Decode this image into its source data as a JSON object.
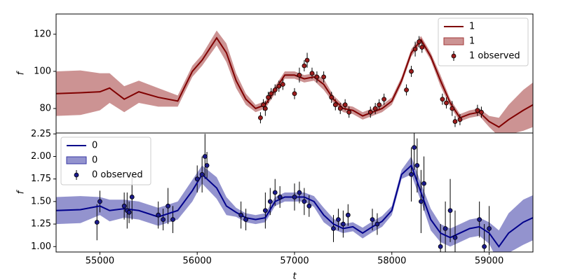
{
  "chart_data": [
    {
      "type": "line",
      "ylabel": "f",
      "legend": "upper right",
      "xlim": [
        54550,
        59450
      ],
      "ylim": [
        66.8,
        130.9
      ],
      "yticks": [
        80,
        100,
        120
      ],
      "x": [
        54550,
        54800,
        55000,
        55100,
        55250,
        55400,
        55600,
        55800,
        55950,
        56050,
        56200,
        56300,
        56400,
        56500,
        56600,
        56700,
        56800,
        56900,
        57000,
        57100,
        57200,
        57300,
        57400,
        57500,
        57600,
        57700,
        57800,
        57900,
        58000,
        58100,
        58200,
        58300,
        58400,
        58500,
        58600,
        58700,
        58800,
        58900,
        59000,
        59100,
        59200,
        59350,
        59450
      ],
      "series": [
        {
          "name": "1",
          "color": "#800000",
          "values": [
            88,
            88.5,
            89,
            91,
            85,
            89,
            86,
            84,
            100,
            106,
            118,
            110,
            95,
            85,
            80,
            82,
            90,
            98,
            98,
            96,
            97,
            93,
            85,
            80,
            79,
            76,
            78,
            80,
            84,
            95,
            110,
            117,
            108,
            95,
            83,
            75,
            77,
            78,
            73,
            70,
            74,
            79,
            82
          ]
        }
      ],
      "band": {
        "name": "1",
        "color": "#a33a3a",
        "lower": [
          76,
          76.5,
          79,
          83,
          78,
          83,
          81,
          81,
          97,
          103,
          114,
          105,
          91,
          82,
          78,
          80,
          88,
          96,
          96,
          94,
          95,
          90,
          83,
          78,
          77,
          74,
          76,
          78,
          82,
          93,
          108,
          115,
          106,
          92,
          81,
          73,
          75,
          76,
          70,
          65,
          66,
          68,
          70
        ],
        "upper": [
          100,
          100.5,
          99,
          99,
          92,
          95,
          91,
          87,
          103,
          109,
          122,
          115,
          99,
          88,
          82,
          84,
          92,
          100,
          100,
          98,
          99,
          96,
          87,
          82,
          81,
          78,
          80,
          82,
          86,
          97,
          112,
          119,
          110,
          98,
          85,
          77,
          79,
          80,
          76,
          75,
          82,
          90,
          94
        ]
      },
      "observed": {
        "name": "1 observed",
        "color": "#9b1c1c",
        "x": [
          56650,
          56680,
          56700,
          56730,
          56760,
          56800,
          56840,
          56880,
          57000,
          57050,
          57100,
          57130,
          57180,
          57230,
          57300,
          57380,
          57420,
          57470,
          57520,
          57560,
          57780,
          57830,
          57870,
          57920,
          58150,
          58200,
          58240,
          58280,
          58310,
          58520,
          58560,
          58620,
          58650,
          58700,
          58880,
          58920
        ],
        "values": [
          75,
          82,
          80,
          86,
          88,
          90,
          92,
          93,
          88,
          98,
          103,
          106,
          99,
          97,
          97,
          86,
          82,
          80,
          82,
          78,
          78,
          80,
          82,
          85,
          90,
          100,
          112,
          116,
          113,
          85,
          83,
          80,
          73,
          74,
          79,
          78
        ],
        "errors": [
          3,
          3,
          4,
          3,
          3,
          3,
          3,
          3,
          3,
          4,
          3,
          4,
          3,
          3,
          3,
          3,
          3,
          3,
          3,
          3,
          3,
          3,
          3,
          3,
          3,
          3,
          4,
          3,
          3,
          3,
          3,
          4,
          3,
          3,
          3,
          3
        ]
      }
    },
    {
      "type": "line",
      "ylabel": "f",
      "xlabel": "t",
      "legend": "upper left",
      "xlim": [
        54550,
        59450
      ],
      "ylim": [
        0.94,
        2.26
      ],
      "yticks": [
        {
          "value": 1,
          "label": "1.00"
        },
        1.25,
        {
          "value": 1.5,
          "label": "1.50"
        },
        1.75,
        {
          "value": 2,
          "label": "2.00"
        },
        2.25
      ],
      "xticks": [
        55000,
        56000,
        57000,
        58000,
        59000
      ],
      "x": [
        54550,
        54800,
        55000,
        55100,
        55250,
        55400,
        55600,
        55800,
        55950,
        56050,
        56200,
        56300,
        56400,
        56500,
        56600,
        56700,
        56800,
        56900,
        57000,
        57100,
        57200,
        57300,
        57400,
        57500,
        57600,
        57700,
        57800,
        57900,
        58000,
        58100,
        58200,
        58300,
        58400,
        58500,
        58600,
        58700,
        58800,
        58900,
        59000,
        59100,
        59200,
        59350,
        59450
      ],
      "series": [
        {
          "name": "0",
          "color": "#00008b",
          "values": [
            1.4,
            1.41,
            1.45,
            1.4,
            1.42,
            1.4,
            1.33,
            1.4,
            1.62,
            1.8,
            1.65,
            1.45,
            1.38,
            1.32,
            1.3,
            1.32,
            1.5,
            1.55,
            1.55,
            1.55,
            1.5,
            1.35,
            1.25,
            1.2,
            1.22,
            1.15,
            1.22,
            1.28,
            1.4,
            1.8,
            1.9,
            1.6,
            1.3,
            1.15,
            1.1,
            1.15,
            1.2,
            1.22,
            1.15,
            1.0,
            1.15,
            1.27,
            1.32
          ]
        }
      ],
      "band": {
        "name": "0",
        "color": "#3a3aa5",
        "lower": [
          1.25,
          1.26,
          1.35,
          1.28,
          1.32,
          1.3,
          1.23,
          1.3,
          1.5,
          1.7,
          1.53,
          1.35,
          1.33,
          1.27,
          1.25,
          1.27,
          1.45,
          1.5,
          1.5,
          1.5,
          1.44,
          1.27,
          1.19,
          1.15,
          1.17,
          1.09,
          1.16,
          1.22,
          1.35,
          1.75,
          1.8,
          1.5,
          1.18,
          1.05,
          1.0,
          1.05,
          1.1,
          1.12,
          1.03,
          0.82,
          0.93,
          1.02,
          1.07
        ],
        "upper": [
          1.55,
          1.56,
          1.55,
          1.52,
          1.52,
          1.5,
          1.43,
          1.5,
          1.74,
          1.9,
          1.77,
          1.55,
          1.43,
          1.37,
          1.35,
          1.37,
          1.55,
          1.6,
          1.6,
          1.6,
          1.56,
          1.43,
          1.31,
          1.25,
          1.27,
          1.21,
          1.28,
          1.34,
          1.45,
          1.85,
          2.0,
          1.7,
          1.42,
          1.25,
          1.2,
          1.25,
          1.3,
          1.32,
          1.27,
          1.18,
          1.37,
          1.52,
          1.57
        ]
      },
      "observed": {
        "name": "0 observed",
        "color": "#1a1a8b",
        "x": [
          54970,
          55000,
          55250,
          55280,
          55300,
          55330,
          55600,
          55650,
          55700,
          55750,
          56000,
          56050,
          56080,
          56100,
          56450,
          56500,
          56700,
          56750,
          56800,
          56850,
          57000,
          57050,
          57100,
          57150,
          57400,
          57450,
          57500,
          57550,
          57800,
          57850,
          58200,
          58230,
          58260,
          58300,
          58330,
          58500,
          58550,
          58600,
          58650,
          58900,
          58950,
          59000
        ],
        "values": [
          1.27,
          1.5,
          1.45,
          1.4,
          1.38,
          1.55,
          1.35,
          1.3,
          1.45,
          1.3,
          1.75,
          1.8,
          2.0,
          1.9,
          1.35,
          1.3,
          1.4,
          1.5,
          1.6,
          1.55,
          1.55,
          1.6,
          1.5,
          1.45,
          1.2,
          1.3,
          1.25,
          1.35,
          1.3,
          1.25,
          1.8,
          2.1,
          1.9,
          1.5,
          1.7,
          1.0,
          1.2,
          1.4,
          1.1,
          1.3,
          1.0,
          1.2
        ],
        "errors": [
          0.2,
          0.12,
          0.15,
          0.2,
          0.12,
          0.25,
          0.15,
          0.12,
          0.2,
          0.15,
          0.15,
          0.2,
          0.25,
          0.15,
          0.15,
          0.12,
          0.2,
          0.15,
          0.15,
          0.12,
          0.15,
          0.12,
          0.15,
          0.12,
          0.15,
          0.12,
          0.15,
          0.12,
          0.12,
          0.12,
          0.3,
          0.25,
          0.3,
          0.35,
          0.3,
          0.25,
          0.3,
          0.35,
          0.3,
          0.2,
          0.25,
          0.25
        ]
      }
    }
  ]
}
